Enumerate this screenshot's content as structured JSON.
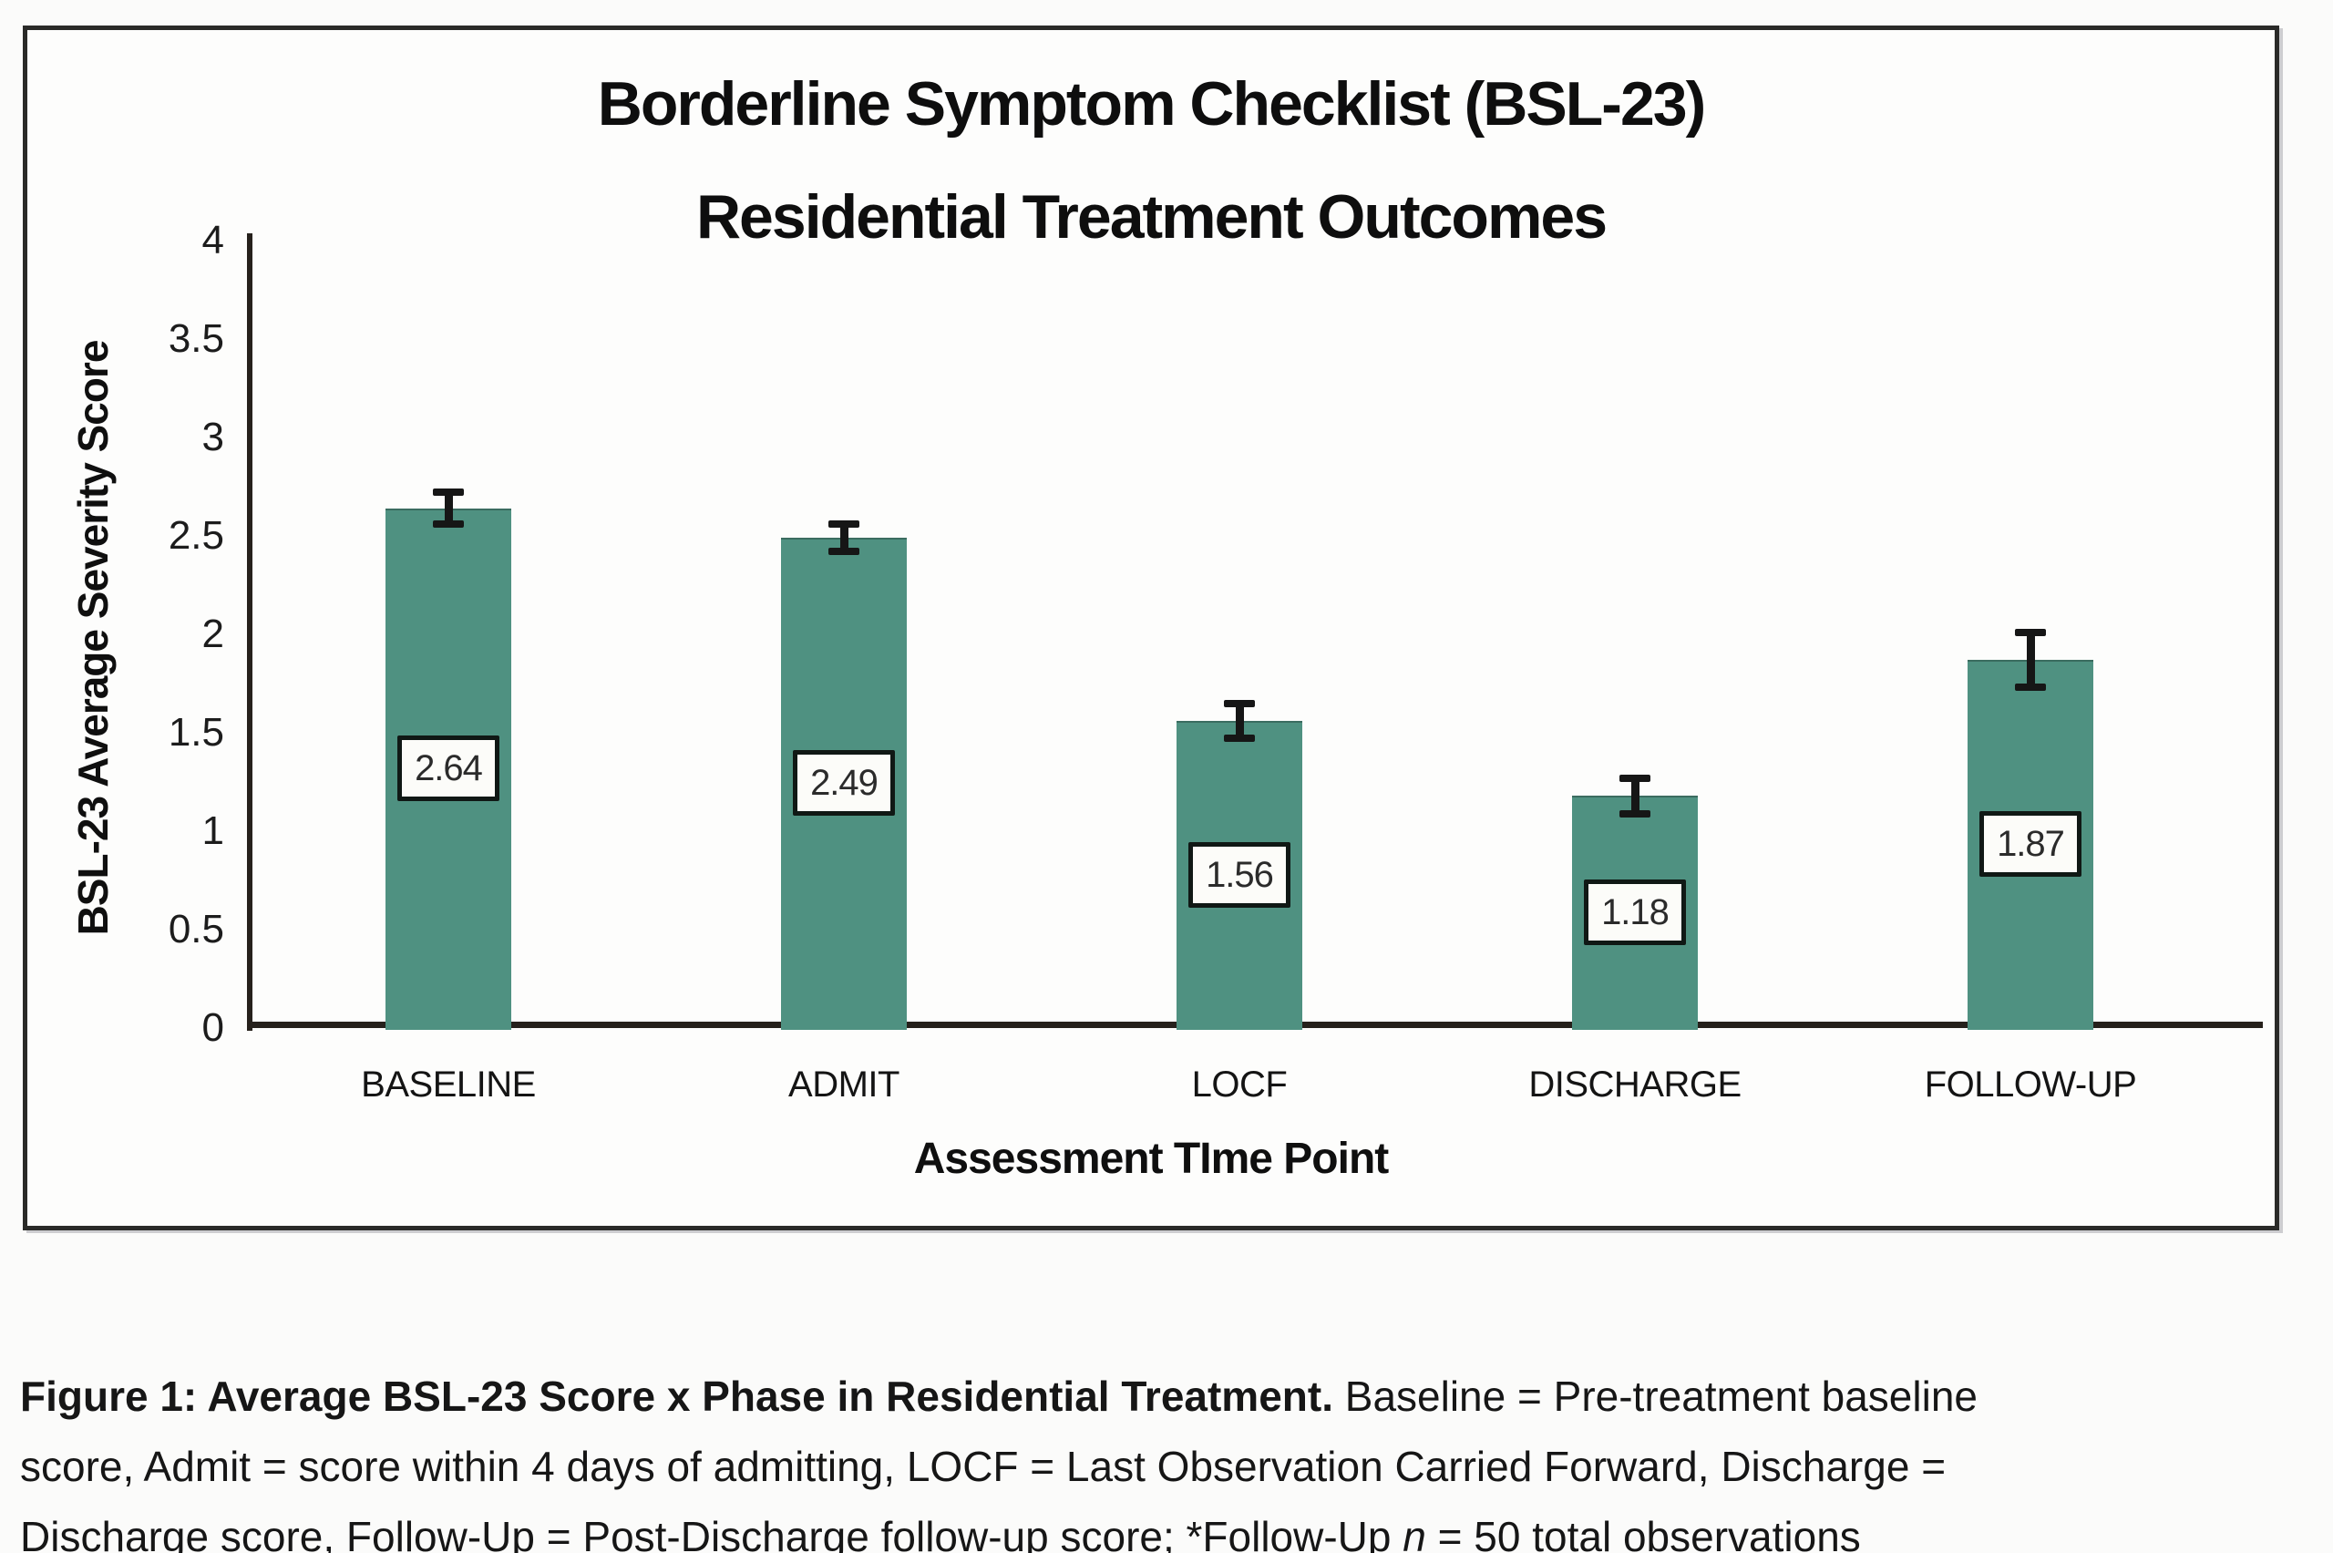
{
  "figure": {
    "title_line1": "Borderline Symptom Checklist (BSL-23)",
    "title_line2": "Residential Treatment Outcomes"
  },
  "chart_data": {
    "type": "bar",
    "title": "Borderline Symptom Checklist (BSL-23) Residential Treatment Outcomes",
    "categories": [
      "BASELINE",
      "ADMIT",
      "LOCF",
      "DISCHARGE",
      "FOLLOW-UP"
    ],
    "values": [
      2.64,
      2.49,
      1.56,
      1.18,
      1.87
    ],
    "value_labels": [
      "2.64",
      "2.49",
      "1.56",
      "1.18",
      "1.87"
    ],
    "error_bars_plus_minus": [
      0.08,
      0.07,
      0.09,
      0.09,
      0.14
    ],
    "xlabel": "Assessment TIme Point",
    "ylabel": "BSL-23 Average Severity Score",
    "ylim": [
      0,
      4
    ],
    "ytick_labels": [
      "0",
      "0.5",
      "1",
      "1.5",
      "2",
      "2.5",
      "3",
      "3.5",
      "4"
    ],
    "grid": false,
    "legend": false,
    "bar_color": "#4f9181",
    "axis_color": "#26211c",
    "error_bar_color": "#161616",
    "value_box_bg": "#fcfcf9",
    "value_box_border": "#101815"
  },
  "caption": {
    "bold": "Figure 1: Average BSL-23 Score x Phase in Residential Treatment.",
    "line1_rest": " Baseline = Pre-treatment baseline",
    "line2": "score, Admit = score within 4 days of admitting, LOCF = Last Observation Carried Forward, Discharge =",
    "line3_before_n": "Discharge score, Follow-Up = Post-Discharge follow-up score; *Follow-Up ",
    "n_italic": "n",
    "line3_after_n": " = 50 total observations"
  }
}
